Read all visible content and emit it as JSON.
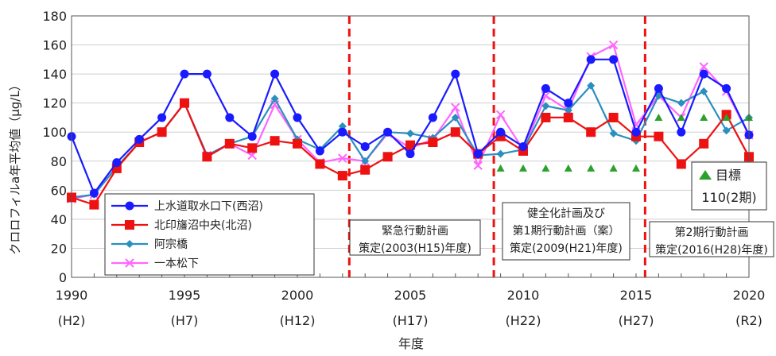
{
  "chart_data": {
    "type": "line",
    "title": "",
    "xlabel": "年度",
    "ylabel": "クロロフィルa年平均値（μg/L）",
    "xlim": [
      1990,
      2020
    ],
    "ylim": [
      0,
      180
    ],
    "yticks": [
      0,
      20,
      40,
      60,
      80,
      100,
      120,
      140,
      160,
      180
    ],
    "xticks": [
      {
        "x": 1990,
        "label": "1990",
        "era": "(H2)"
      },
      {
        "x": 1995,
        "label": "1995",
        "era": "(H7)"
      },
      {
        "x": 2000,
        "label": "2000",
        "era": "(H12)"
      },
      {
        "x": 2005,
        "label": "2005",
        "era": "(H17)"
      },
      {
        "x": 2010,
        "label": "2010",
        "era": "(H22)"
      },
      {
        "x": 2015,
        "label": "2015",
        "era": "(H27)"
      },
      {
        "x": 2020,
        "label": "2020",
        "era": "(R2)"
      }
    ],
    "grid": "horizontal",
    "legend_position": "bottom-left",
    "series": [
      {
        "name": "上水道取水口下(西沼)",
        "color": "#1a1aff",
        "marker": "circle",
        "x": [
          1990,
          1991,
          1992,
          1993,
          1994,
          1995,
          1996,
          1997,
          1998,
          1999,
          2000,
          2001,
          2002,
          2003,
          2004,
          2005,
          2006,
          2007,
          2008,
          2009,
          2010,
          2011,
          2012,
          2013,
          2014,
          2015,
          2016,
          2017,
          2018,
          2019,
          2020
        ],
        "values": [
          97,
          58,
          79,
          95,
          110,
          140,
          140,
          110,
          97,
          140,
          110,
          87,
          100,
          90,
          100,
          85,
          110,
          140,
          85,
          100,
          90,
          130,
          120,
          150,
          150,
          100,
          130,
          100,
          140,
          130,
          98
        ]
      },
      {
        "name": "北印旛沼中央(北沼)",
        "color": "#ee1111",
        "marker": "square",
        "x": [
          1990,
          1991,
          1992,
          1993,
          1994,
          1995,
          1996,
          1997,
          1998,
          1999,
          2000,
          2001,
          2002,
          2003,
          2004,
          2005,
          2006,
          2007,
          2008,
          2009,
          2010,
          2011,
          2012,
          2013,
          2014,
          2015,
          2016,
          2017,
          2018,
          2019,
          2020
        ],
        "values": [
          55,
          50,
          75,
          93,
          100,
          120,
          83,
          92,
          89,
          94,
          92,
          78,
          70,
          74,
          83,
          91,
          93,
          100,
          85,
          97,
          87,
          110,
          110,
          100,
          110,
          97,
          97,
          78,
          92,
          112,
          83
        ]
      },
      {
        "name": "阿宗橋",
        "color": "#2a8fbf",
        "marker": "diamond",
        "x": [
          1990,
          1991,
          1992,
          1993,
          1994,
          1995,
          1996,
          1997,
          1998,
          1999,
          2000,
          2001,
          2002,
          2003,
          2004,
          2005,
          2006,
          2007,
          2008,
          2009,
          2010,
          2011,
          2012,
          2013,
          2014,
          2015,
          2016,
          2017,
          2018,
          2019,
          2020
        ],
        "values": [
          55,
          57,
          76,
          93,
          100,
          120,
          84,
          92,
          97,
          123,
          95,
          88,
          104,
          80,
          100,
          99,
          96,
          110,
          84,
          85,
          88,
          118,
          115,
          132,
          99,
          94,
          125,
          120,
          128,
          101,
          110
        ]
      },
      {
        "name": "一本松下",
        "color": "#ff66ff",
        "marker": "x",
        "x": [
          1990,
          1991,
          1992,
          1993,
          1994,
          1995,
          1996,
          1997,
          1998,
          1999,
          2000,
          2001,
          2002,
          2003,
          2004,
          2005,
          2006,
          2007,
          2008,
          2009,
          2010,
          2011,
          2012,
          2013,
          2014,
          2015,
          2016,
          2017,
          2018,
          2019,
          2020
        ],
        "values": [
          54,
          57,
          76,
          93,
          100,
          120,
          84,
          92,
          84,
          119,
          95,
          79,
          82,
          80,
          99,
          89,
          95,
          117,
          77,
          112,
          88,
          125,
          115,
          152,
          160,
          105,
          125,
          110,
          145,
          128,
          98
        ]
      }
    ],
    "target": {
      "label": "目標",
      "sublabel": "110(2期)",
      "color": "#2ca02c",
      "x": [
        2009,
        2010,
        2011,
        2012,
        2013,
        2014,
        2015,
        2016,
        2017,
        2018,
        2019,
        2020
      ],
      "values": [
        75,
        75,
        75,
        75,
        75,
        75,
        75,
        110,
        110,
        110,
        110,
        110
      ]
    },
    "events": [
      {
        "x": 2002.3,
        "lines": [
          "緊急行動計画",
          "策定(2003(H15)年度)"
        ],
        "color": "#ee1111"
      },
      {
        "x": 2008.7,
        "lines": [
          "健全化計画及び",
          "第1期行動計画（案）",
          "策定(2009(H21)年度)"
        ],
        "color": "#ee1111"
      },
      {
        "x": 2015.4,
        "lines": [
          "第2期行動計画",
          "策定(2016(H28)年度)"
        ],
        "color": "#ee1111"
      }
    ]
  }
}
